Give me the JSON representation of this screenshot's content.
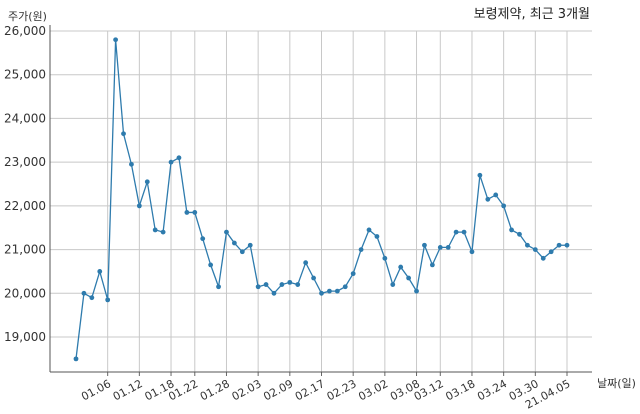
{
  "chart_data": {
    "type": "line",
    "title": "보령제약, 최근 3개월",
    "ylabel": "주가(원)",
    "xlabel": "날짜(일)",
    "ylim": [
      18200,
      26000
    ],
    "yticks": [
      19000,
      20000,
      21000,
      22000,
      23000,
      24000,
      25000,
      26000
    ],
    "ytick_labels": [
      "19,000",
      "20,000",
      "21,000",
      "22,000",
      "23,000",
      "24,000",
      "25,000",
      "26,000"
    ],
    "xtick_labels": [
      "01.06",
      "01.12",
      "01.18",
      "01.22",
      "01.28",
      "02.03",
      "02.09",
      "02.17",
      "02.23",
      "03.02",
      "03.08",
      "03.12",
      "03.18",
      "03.24",
      "03.30",
      "21.04.05"
    ],
    "xtick_index": [
      4,
      8,
      12,
      15,
      19,
      23,
      27,
      31,
      35,
      39,
      43,
      46,
      50,
      54,
      58,
      62
    ],
    "grid": true,
    "legend": "none",
    "line_color": "#2e7bad",
    "series": [
      {
        "values": [
          18500,
          20000,
          19900,
          20500,
          19850,
          25800,
          23650,
          22950,
          22000,
          22550,
          21450,
          21400,
          23000,
          23100,
          21850,
          21850,
          21250,
          20650,
          20150,
          21400,
          21150,
          20950,
          21100,
          20150,
          20200,
          20000,
          20200,
          20250,
          20200,
          20700,
          20350,
          20000,
          20050,
          20050,
          20150,
          20450,
          21000,
          21450,
          21300,
          20800,
          20200,
          20600,
          20350,
          20050,
          21100,
          20650,
          21050,
          21050,
          21400,
          21400,
          20950,
          22700,
          22150,
          22250,
          22000,
          21450,
          21350,
          21100,
          21000,
          20800,
          20950,
          21100,
          21100
        ]
      }
    ]
  }
}
